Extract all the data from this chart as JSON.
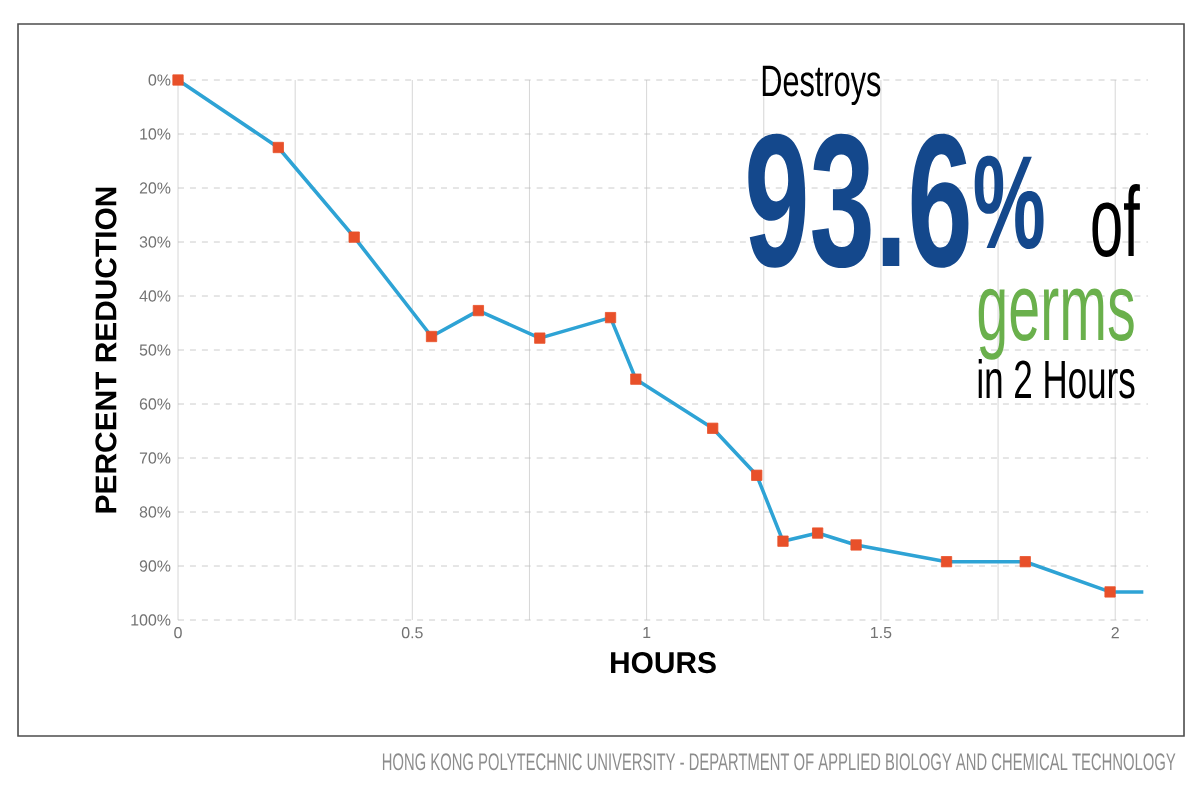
{
  "chart_data": {
    "type": "line",
    "xlabel": "HOURS",
    "ylabel": "PERCENT REDUCTION",
    "xlim": [
      0,
      2.07
    ],
    "ylim": [
      100,
      0
    ],
    "xticks": [
      0,
      {
        "value": 0.25,
        "label": null
      },
      0.5,
      {
        "value": 0.75,
        "label": null
      },
      1,
      {
        "value": 1.25,
        "label": null
      },
      1.5,
      {
        "value": 1.75,
        "label": null
      },
      2
    ],
    "yticks": [
      {
        "value": 0,
        "label": "0%"
      },
      {
        "value": 10,
        "label": "10%"
      },
      {
        "value": 20,
        "label": "20%"
      },
      {
        "value": 30,
        "label": "30%"
      },
      {
        "value": 40,
        "label": "40%"
      },
      {
        "value": 50,
        "label": "50%"
      },
      {
        "value": 60,
        "label": "60%"
      },
      {
        "value": 70,
        "label": "70%"
      },
      {
        "value": 80,
        "label": "80%"
      },
      {
        "value": 90,
        "label": "90%"
      },
      {
        "value": 100,
        "label": "100%"
      }
    ],
    "grid": true,
    "series": [
      {
        "color": "#2ea3d5",
        "marker": "none",
        "x": [
          0,
          0.214,
          0.376,
          0.541,
          0.641,
          0.772,
          0.923,
          0.977,
          1.141,
          1.235,
          1.291,
          1.365,
          1.447,
          1.64,
          1.808,
          1.989,
          2.06
        ],
        "values": [
          0,
          12.5,
          29.1,
          47.5,
          42.7,
          47.8,
          44.0,
          55.4,
          64.5,
          73.2,
          85.4,
          83.9,
          86.1,
          89.2,
          89.2,
          94.8,
          94.8
        ]
      },
      {
        "type": "scatter",
        "color": "#e8502a",
        "marker": "square",
        "x": [
          0,
          0.214,
          0.376,
          0.541,
          0.641,
          0.772,
          0.923,
          0.977,
          1.141,
          1.235,
          1.291,
          1.365,
          1.447,
          1.64,
          1.808,
          1.989
        ],
        "values": [
          0,
          12.5,
          29.1,
          47.5,
          42.7,
          47.8,
          44.0,
          55.4,
          64.5,
          73.2,
          85.4,
          83.9,
          86.1,
          89.2,
          89.2,
          94.8
        ]
      }
    ],
    "annotations": [
      "Destroys",
      "93.6$^{%}$",
      "of",
      "germs",
      "in 2 Hours",
      "HONG KONG POLYTECHNIC UNIVERSITY - DEPARTMENT OF APPLIED BIOLOGY AND CHEMICAL TECHNOLOGY"
    ]
  }
}
